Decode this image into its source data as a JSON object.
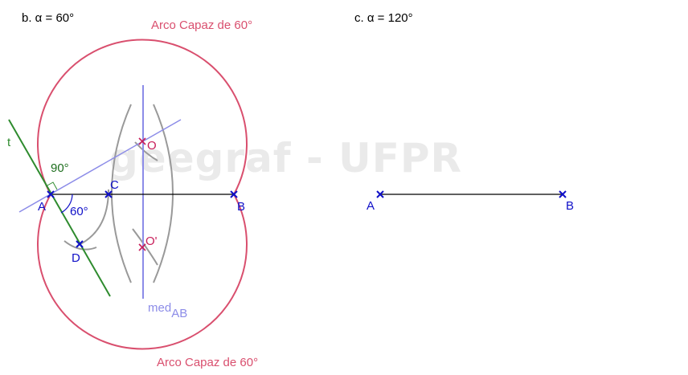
{
  "titles": {
    "left": "b. α = 60°",
    "right": "c. α = 120°"
  },
  "watermark": "geegraf - UFPR",
  "arc_labels": {
    "top": "Arco Capaz de 60°",
    "bottom": "Arco Capaz de 60°"
  },
  "points_left": {
    "A": "A",
    "B": "B",
    "C": "C",
    "D": "D",
    "O": "O",
    "O2": "O'"
  },
  "line_labels": {
    "tangent": "t",
    "bisector_main": "med",
    "bisector_sub": "AB"
  },
  "angles": {
    "right": "90°",
    "alpha": "60°"
  },
  "points_right": {
    "A": "A",
    "B": "B"
  },
  "colors": {
    "arc": "#d94f6e",
    "point": "#1010c8",
    "center": "#c81e5a",
    "tangent": "#2e8b2e",
    "bisector": "#8c8ce8",
    "construction": "#999999",
    "segment": "#000000",
    "right_angle_text": "#1e6e1e"
  }
}
